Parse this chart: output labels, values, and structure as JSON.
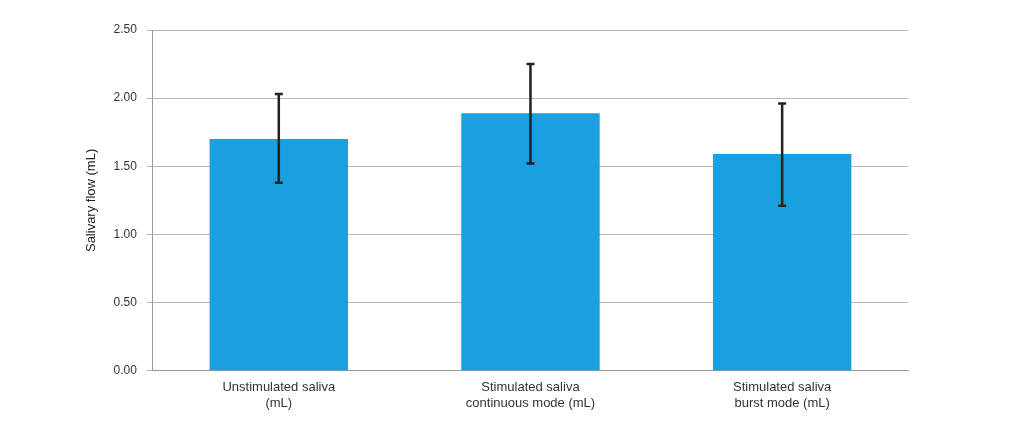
{
  "chart_data": {
    "type": "bar",
    "ylabel": "Salivary flow (mL)",
    "categories": [
      "Unstimulated saliva\n(mL)",
      "Stimulated saliva\ncontinuous mode (mL)",
      "Stimulated saliva\nburst mode (mL)"
    ],
    "values": [
      1.7,
      1.89,
      1.59
    ],
    "errors": [
      [
        1.38,
        2.03
      ],
      [
        1.52,
        2.25
      ],
      [
        1.21,
        1.96
      ]
    ],
    "color": "#1a9fdf",
    "ylim": [
      0,
      2.5
    ],
    "yticks": [
      {
        "value": 0,
        "label": "0.00"
      },
      {
        "value": 0.5,
        "label": "0.50"
      },
      {
        "value": 1,
        "label": "1.00"
      },
      {
        "value": 1.5,
        "label": "1.50"
      },
      {
        "value": 2,
        "label": "2.00"
      },
      {
        "value": 2.5,
        "label": "2.50"
      }
    ],
    "grid": "y",
    "legend": false
  }
}
